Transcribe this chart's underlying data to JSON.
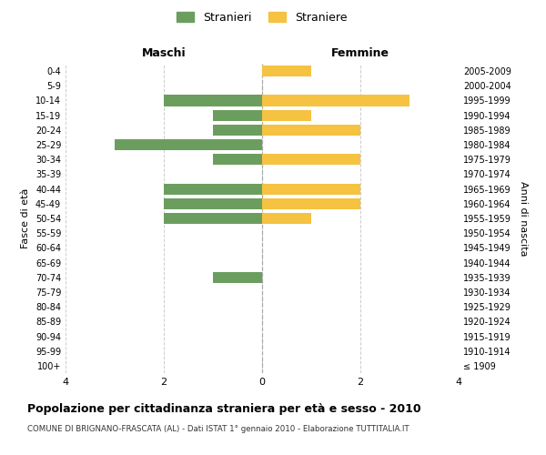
{
  "age_groups": [
    "100+",
    "95-99",
    "90-94",
    "85-89",
    "80-84",
    "75-79",
    "70-74",
    "65-69",
    "60-64",
    "55-59",
    "50-54",
    "45-49",
    "40-44",
    "35-39",
    "30-34",
    "25-29",
    "20-24",
    "15-19",
    "10-14",
    "5-9",
    "0-4"
  ],
  "birth_years": [
    "≤ 1909",
    "1910-1914",
    "1915-1919",
    "1920-1924",
    "1925-1929",
    "1930-1934",
    "1935-1939",
    "1940-1944",
    "1945-1949",
    "1950-1954",
    "1955-1959",
    "1960-1964",
    "1965-1969",
    "1970-1974",
    "1975-1979",
    "1980-1984",
    "1985-1989",
    "1990-1994",
    "1995-1999",
    "2000-2004",
    "2005-2009"
  ],
  "males": [
    0,
    0,
    0,
    0,
    0,
    0,
    1,
    0,
    0,
    0,
    2,
    2,
    2,
    0,
    1,
    3,
    1,
    1,
    2,
    0,
    0
  ],
  "females": [
    0,
    0,
    0,
    0,
    0,
    0,
    0,
    0,
    0,
    0,
    1,
    2,
    2,
    0,
    2,
    0,
    2,
    1,
    3,
    0,
    1
  ],
  "male_color": "#6b9e5e",
  "female_color": "#f5c242",
  "background_color": "#ffffff",
  "grid_color": "#cccccc",
  "title": "Popolazione per cittadinanza straniera per età e sesso - 2010",
  "subtitle": "COMUNE DI BRIGNANO-FRASCATA (AL) - Dati ISTAT 1° gennaio 2010 - Elaborazione TUTTITALIA.IT",
  "xlabel_left": "Maschi",
  "xlabel_right": "Femmine",
  "ylabel_left": "Fasce di età",
  "ylabel_right": "Anni di nascita",
  "legend_male": "Stranieri",
  "legend_female": "Straniere",
  "xlim": 4,
  "bar_height": 0.75
}
